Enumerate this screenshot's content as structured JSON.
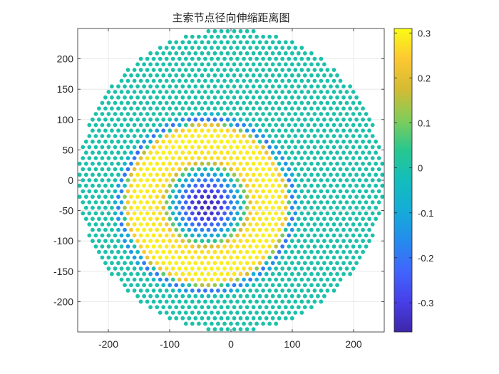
{
  "chart_data": {
    "type": "scatter",
    "title": "主索节点径向伸缩距离图",
    "xlabel": "",
    "ylabel": "",
    "xlim": [
      -250,
      250
    ],
    "ylim": [
      -250,
      250
    ],
    "xticks": [
      -200,
      -100,
      0,
      100,
      200
    ],
    "yticks": [
      -200,
      -150,
      -100,
      -50,
      0,
      50,
      100,
      150,
      200
    ],
    "xtick_labels": [
      "-200",
      "-100",
      "0",
      "100",
      "200"
    ],
    "ytick_labels": [
      "-200",
      "-150",
      "-100",
      "-50",
      "0",
      "50",
      "100",
      "150",
      "200"
    ],
    "grid": true,
    "colormap": "parula",
    "clim": [
      -0.365,
      0.31
    ],
    "colorbar_ticks": [
      0.3,
      0.2,
      0.1,
      0,
      -0.1,
      -0.2,
      -0.3
    ],
    "colorbar_tick_labels": [
      "0.3",
      "0.2",
      "0.1",
      "0",
      "-0.1",
      "-0.2",
      "-0.3"
    ],
    "point_grid": {
      "shape": "disk",
      "center": [
        0,
        0
      ],
      "radius": 250,
      "spacing": 10.5
    },
    "radial_profile": {
      "center": [
        -40,
        -40
      ],
      "samples": [
        {
          "r": 0,
          "value": -0.35
        },
        {
          "r": 20,
          "value": -0.32
        },
        {
          "r": 40,
          "value": -0.2
        },
        {
          "r": 55,
          "value": -0.08
        },
        {
          "r": 65,
          "value": 0.1
        },
        {
          "r": 75,
          "value": 0.27
        },
        {
          "r": 110,
          "value": 0.3
        },
        {
          "r": 125,
          "value": 0.28
        },
        {
          "r": 132,
          "value": 0.2
        },
        {
          "r": 137,
          "value": -0.05
        },
        {
          "r": 141,
          "value": -0.22
        },
        {
          "r": 147,
          "value": -0.12
        },
        {
          "r": 152,
          "value": 0.0
        },
        {
          "r": 400,
          "value": 0.0
        }
      ]
    },
    "outer_value": 0.0
  }
}
